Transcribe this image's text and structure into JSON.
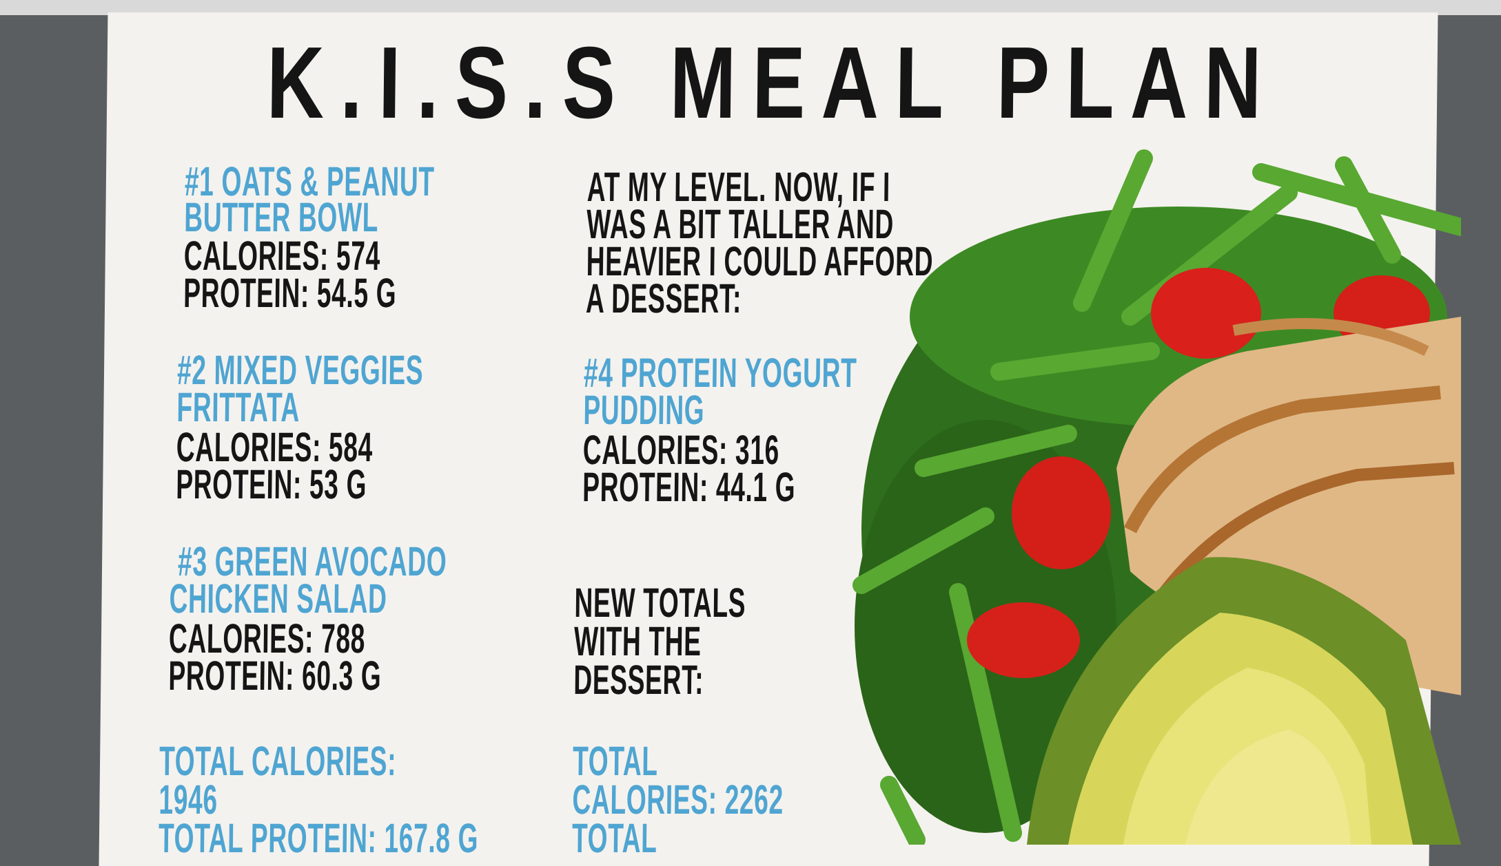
{
  "title": "K.I.S.S MEAL PLAN",
  "meals": [
    {
      "heading": [
        "#1 OATS & PEANUT",
        "BUTTER BOWL"
      ],
      "calories": "CALORIES: 574",
      "protein": "PROTEIN: 54.5 G"
    },
    {
      "heading": [
        "#2 MIXED VEGGIES",
        "FRITTATA"
      ],
      "calories": "CALORIES: 584",
      "protein": "PROTEIN: 53 G"
    },
    {
      "heading": [
        "#3  GREEN AVOCADO",
        "CHICKEN SALAD"
      ],
      "calories": "CALORIES: 788",
      "protein": "PROTEIN: 60.3 G"
    },
    {
      "heading": [
        "#4 PROTEIN YOGURT",
        "PUDDING"
      ],
      "calories": "CALORIES: 316",
      "protein": "PROTEIN: 44.1 G"
    }
  ],
  "totals": {
    "lines": [
      "TOTAL CALORIES:",
      "1946",
      "TOTAL PROTEIN: 167.8 G"
    ]
  },
  "dessert_note": [
    "AT MY LEVEL. NOW, IF I",
    "WAS A BIT TALLER AND",
    "HEAVIER I COULD AFFORD",
    "A DESSERT:"
  ],
  "new_totals_heading": [
    "NEW TOTALS",
    "WITH THE",
    "DESSERT:"
  ],
  "new_totals": {
    "lines": [
      "TOTAL",
      "CALORIES: 2262",
      "TOTAL"
    ]
  },
  "colors": {
    "accent": "#4fa5d2",
    "text": "#151515",
    "background": "#f4f2ee"
  }
}
